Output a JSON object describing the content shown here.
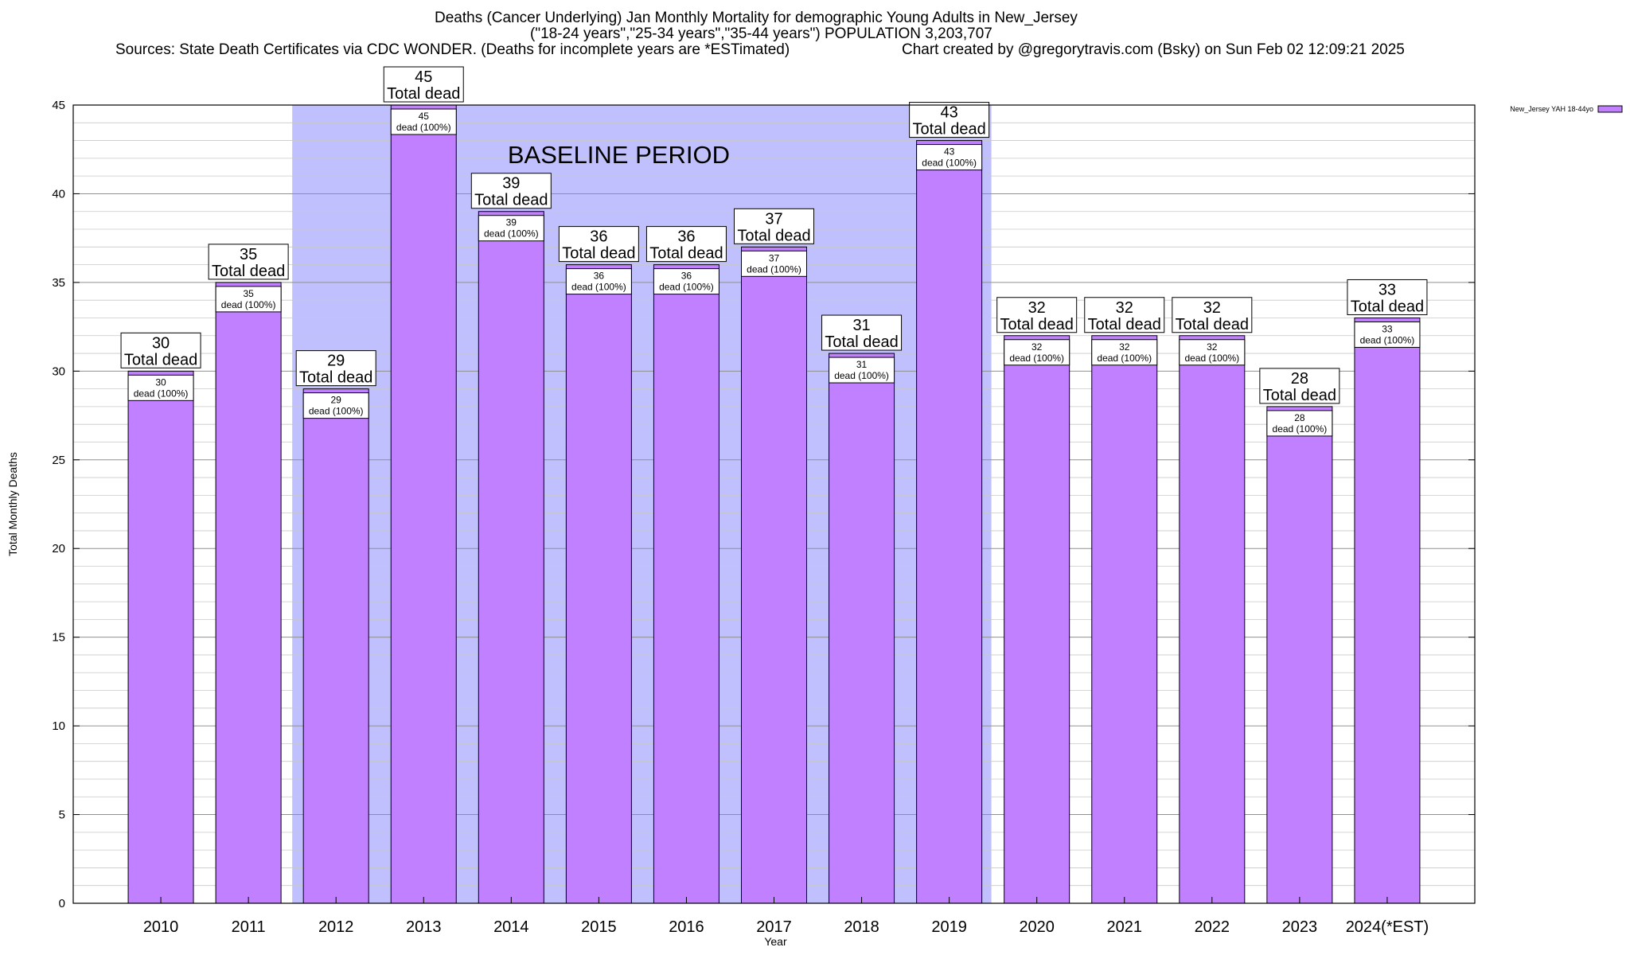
{
  "header": {
    "title_line1": "Deaths (Cancer Underlying) Jan Monthly Mortality for demographic Young Adults in New_Jersey",
    "title_line2": "(\"18-24 years\",\"25-34 years\",\"35-44 years\") POPULATION 3,203,707",
    "sources": "Sources: State Death Certificates via CDC WONDER. (Deaths for incomplete years are *ESTimated)",
    "credit": "Chart created by @gregorytravis.com (Bsky) on Sun Feb 02 12:09:21 2025"
  },
  "colors": {
    "bar_fill": "#c080ff",
    "baseline_band": "#c0c0ff",
    "grid": "#a0a0a0"
  },
  "chart_data": {
    "type": "bar",
    "categories": [
      "2010",
      "2011",
      "2012",
      "2013",
      "2014",
      "2015",
      "2016",
      "2017",
      "2018",
      "2019",
      "2020",
      "2021",
      "2022",
      "2023",
      "2024(*EST)"
    ],
    "series": [
      {
        "name": "New_Jersey YAH 18-44yo",
        "values": [
          30,
          35,
          29,
          45,
          39,
          36,
          36,
          37,
          31,
          43,
          32,
          32,
          32,
          28,
          33
        ]
      }
    ],
    "xlabel": "Year",
    "ylabel": "Total Monthly Deaths",
    "ylim": [
      0,
      45
    ],
    "yticks": [
      0,
      5,
      10,
      15,
      20,
      25,
      30,
      35,
      40,
      45
    ],
    "grid": true,
    "legend_position": "top-right",
    "baseline_band": {
      "label": "BASELINE PERIOD",
      "from": "2012",
      "to": "2019"
    },
    "total_label_suffix": "Total dead",
    "inner_label_text": "dead (100%)"
  }
}
